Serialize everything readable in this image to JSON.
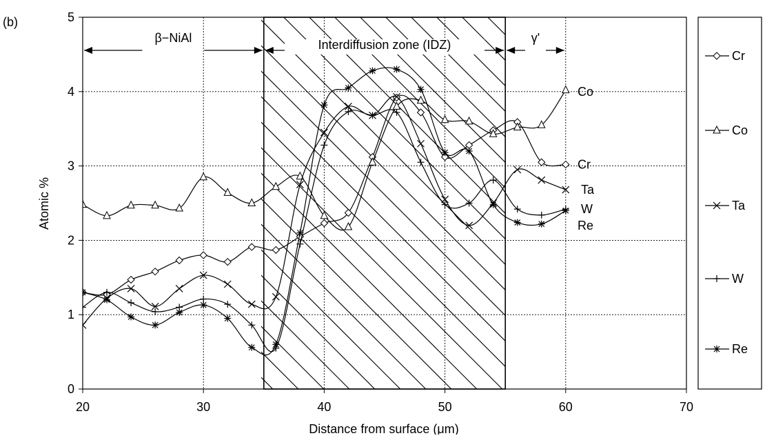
{
  "panel_label": "(b)",
  "chart_data": {
    "type": "line",
    "xlabel": "Distance from surface (μm)",
    "ylabel": "Atomic %",
    "xlim": [
      20,
      70
    ],
    "ylim": [
      0,
      5
    ],
    "xticks": [
      20,
      30,
      40,
      50,
      60,
      70
    ],
    "yticks": [
      0,
      1,
      2,
      3,
      4,
      5
    ],
    "grid": "dotted",
    "legend_position": "right",
    "regions": [
      {
        "label": "β−NiAl",
        "x_start": 20,
        "x_end": 35,
        "hatched": false
      },
      {
        "label": "Interdiffusion zone (IDZ)",
        "x_start": 35,
        "x_end": 55,
        "hatched": true
      },
      {
        "label": "γ'",
        "x_start": 55,
        "x_end": 60,
        "hatched": false
      }
    ],
    "series": [
      {
        "name": "Cr",
        "marker": "diamond",
        "end_label": "Cr",
        "x": [
          20,
          22,
          24,
          26,
          28,
          30,
          32,
          34,
          36,
          38,
          40,
          42,
          44,
          46,
          48,
          50,
          52,
          54,
          56,
          58,
          60
        ],
        "y": [
          1.3,
          1.27,
          1.47,
          1.58,
          1.73,
          1.8,
          1.71,
          1.91,
          1.87,
          2.05,
          2.23,
          2.37,
          3.12,
          3.92,
          3.72,
          3.12,
          3.28,
          3.48,
          3.59,
          3.05,
          3.02
        ]
      },
      {
        "name": "Co",
        "marker": "triangle",
        "end_label": "Co",
        "x": [
          20,
          22,
          24,
          26,
          28,
          30,
          32,
          34,
          36,
          38,
          40,
          42,
          44,
          46,
          48,
          50,
          52,
          54,
          56,
          58,
          60
        ],
        "y": [
          2.48,
          2.33,
          2.47,
          2.47,
          2.43,
          2.85,
          2.64,
          2.5,
          2.72,
          2.86,
          2.33,
          2.18,
          3.05,
          3.8,
          3.88,
          3.62,
          3.6,
          3.43,
          3.52,
          3.55,
          4.02
        ]
      },
      {
        "name": "Ta",
        "marker": "x",
        "end_label": "Ta",
        "x": [
          20,
          22,
          24,
          26,
          28,
          30,
          32,
          34,
          36,
          38,
          40,
          42,
          44,
          46,
          48,
          50,
          52,
          54,
          56,
          58,
          60
        ],
        "y": [
          0.86,
          1.22,
          1.35,
          1.11,
          1.35,
          1.53,
          1.41,
          1.14,
          1.24,
          2.75,
          3.45,
          3.8,
          3.68,
          3.93,
          3.3,
          2.55,
          2.2,
          2.5,
          2.95,
          2.81,
          2.68
        ]
      },
      {
        "name": "W",
        "marker": "plus",
        "end_label": "W",
        "x": [
          20,
          22,
          24,
          26,
          28,
          30,
          32,
          34,
          36,
          38,
          40,
          42,
          44,
          46,
          48,
          50,
          52,
          54,
          56,
          58,
          60
        ],
        "y": [
          1.1,
          1.3,
          1.16,
          1.04,
          1.1,
          1.21,
          1.14,
          0.86,
          0.55,
          1.95,
          3.28,
          3.73,
          3.68,
          3.72,
          3.05,
          2.48,
          2.5,
          2.81,
          2.42,
          2.34,
          2.42
        ]
      },
      {
        "name": "Re",
        "marker": "asterisk",
        "end_label": "Re",
        "x": [
          20,
          22,
          24,
          26,
          28,
          30,
          32,
          34,
          36,
          38,
          40,
          42,
          44,
          46,
          48,
          50,
          52,
          54,
          56,
          58,
          60
        ],
        "y": [
          1.3,
          1.2,
          0.97,
          0.86,
          1.03,
          1.13,
          0.95,
          0.56,
          0.6,
          2.1,
          3.82,
          4.05,
          4.28,
          4.3,
          4.03,
          3.18,
          3.2,
          2.48,
          2.24,
          2.22,
          2.4
        ]
      }
    ]
  }
}
